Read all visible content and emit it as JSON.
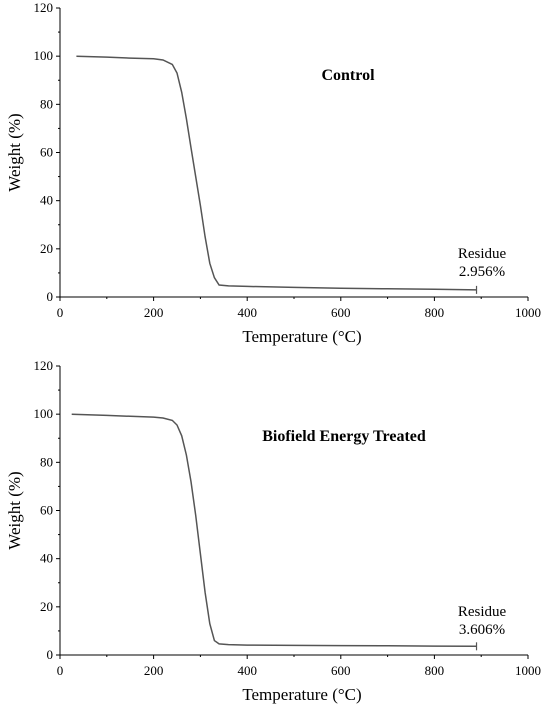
{
  "chart_data": [
    {
      "type": "line",
      "title": "Control",
      "xlabel": "Temperature (°C)",
      "ylabel": "Weight (%)",
      "xlim": [
        0,
        1000
      ],
      "ylim": [
        0,
        120
      ],
      "xticks": [
        "0",
        "200",
        "400",
        "600",
        "800",
        "1000"
      ],
      "yticks": [
        "0",
        "20",
        "40",
        "60",
        "80",
        "100",
        "120"
      ],
      "grid": false,
      "annotation": {
        "line1": "Residue",
        "line2": "2.956%",
        "x": 890,
        "y": 2.956
      },
      "series": [
        {
          "x": [
            35,
            100,
            150,
            200,
            220,
            240,
            250,
            260,
            270,
            280,
            290,
            300,
            310,
            320,
            330,
            340,
            360,
            400,
            500,
            600,
            700,
            800,
            890
          ],
          "y": [
            100,
            99.6,
            99.2,
            98.9,
            98.4,
            96.6,
            93,
            85,
            74,
            62,
            50,
            38,
            25,
            14,
            8,
            5,
            4.6,
            4.4,
            4,
            3.6,
            3.4,
            3.2,
            2.956
          ]
        }
      ]
    },
    {
      "type": "line",
      "title": "Biofield Energy Treated",
      "xlabel": "Temperature (°C)",
      "ylabel": "Weight (%)",
      "xlim": [
        0,
        1000
      ],
      "ylim": [
        0,
        120
      ],
      "xticks": [
        "0",
        "200",
        "400",
        "600",
        "800",
        "1000"
      ],
      "yticks": [
        "0",
        "20",
        "40",
        "60",
        "80",
        "100",
        "120"
      ],
      "grid": false,
      "annotation": {
        "line1": "Residue",
        "line2": "3.606%",
        "x": 890,
        "y": 3.606
      },
      "series": [
        {
          "x": [
            25,
            100,
            150,
            200,
            220,
            240,
            250,
            260,
            270,
            280,
            290,
            300,
            310,
            320,
            330,
            340,
            360,
            400,
            500,
            600,
            700,
            800,
            890
          ],
          "y": [
            100,
            99.5,
            99.1,
            98.8,
            98.4,
            97.4,
            95.5,
            91,
            83,
            72,
            58,
            42,
            26,
            13,
            6,
            4.6,
            4.3,
            4.1,
            4,
            3.9,
            3.8,
            3.7,
            3.606
          ]
        }
      ]
    }
  ]
}
